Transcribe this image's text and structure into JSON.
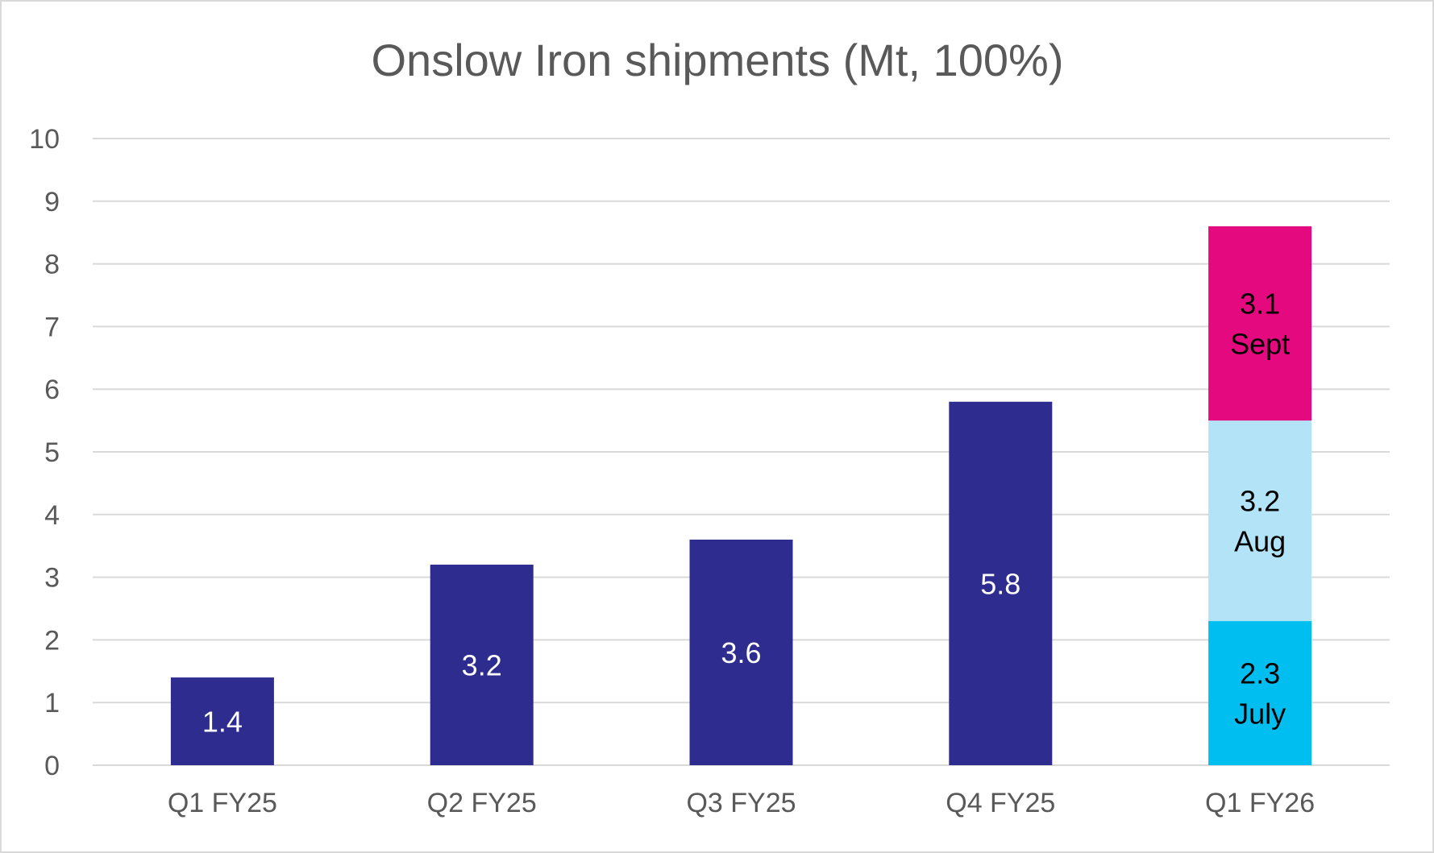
{
  "chart_data": {
    "type": "bar",
    "title": "Onslow Iron shipments (Mt, 100%)",
    "xlabel": "",
    "ylabel": "",
    "ylim": [
      0,
      10
    ],
    "yticks": [
      "0",
      "1",
      "2",
      "3",
      "4",
      "5",
      "6",
      "7",
      "8",
      "9",
      "10"
    ],
    "grid": true,
    "legend": "none",
    "categories": [
      "Q1 FY25",
      "Q2 FY25",
      "Q3 FY25",
      "Q4 FY25",
      "Q1 FY26"
    ],
    "series": [
      {
        "values": [
          1.4,
          3.2,
          3.6,
          5.8,
          null
        ],
        "labels": [
          "1.4",
          "3.2",
          "3.6",
          "5.8",
          null
        ],
        "color": "#2e2d8f",
        "label_color": "#ffffff"
      },
      {
        "values": [
          null,
          null,
          null,
          null,
          2.3
        ],
        "labels": [
          null,
          null,
          null,
          null,
          [
            "2.3",
            "July"
          ]
        ],
        "color": "#00bff0",
        "label_color": "#000000"
      },
      {
        "values": [
          null,
          null,
          null,
          null,
          3.2
        ],
        "labels": [
          null,
          null,
          null,
          null,
          [
            "3.2",
            "Aug"
          ]
        ],
        "color": "#b3e3f7",
        "label_color": "#000000"
      },
      {
        "values": [
          null,
          null,
          null,
          null,
          3.1
        ],
        "labels": [
          null,
          null,
          null,
          null,
          [
            "3.1",
            "Sept"
          ]
        ],
        "color": "#e5097f",
        "label_color": "#000000"
      }
    ],
    "colors": {
      "gridline": "#d9d9d9",
      "axis_text": "#595959",
      "frame": "#d9d9d9"
    }
  }
}
